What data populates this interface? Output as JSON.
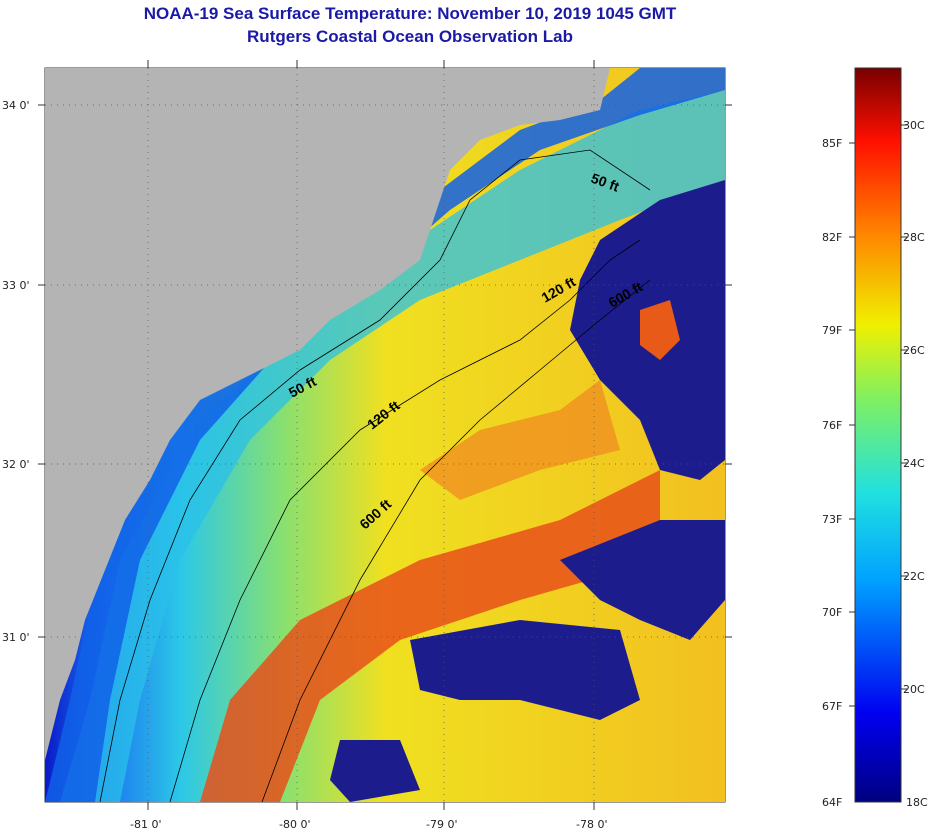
{
  "title": "NOAA-19 Sea Surface Temperature:  November 10, 2019 1045 GMT",
  "subtitle": "Rutgers Coastal Ocean Observation Lab",
  "lat_labels": [
    "34 0'",
    "33 0'",
    "32 0'",
    "31 0'"
  ],
  "lon_labels": [
    "-81 0'",
    "-80 0'",
    "-79 0'",
    "-78 0'"
  ],
  "contour_labels": [
    "50 ft",
    "120 ft",
    "600 ft",
    "50 ft",
    "120 ft",
    "600 ft"
  ],
  "colorbar": {
    "fahrenheit": [
      "85F",
      "82F",
      "79F",
      "76F",
      "73F",
      "70F",
      "67F",
      "64F"
    ],
    "celsius": [
      "30C",
      "28C",
      "26C",
      "24C",
      "22C",
      "20C",
      "18C"
    ]
  },
  "colors": {
    "title": "#1a1aa6",
    "land": "#b4b4b4",
    "cloud": "#1c1c8c",
    "warm": "#e8401a",
    "cool": "#2aa0f0",
    "cold": "#0a1ac8"
  }
}
